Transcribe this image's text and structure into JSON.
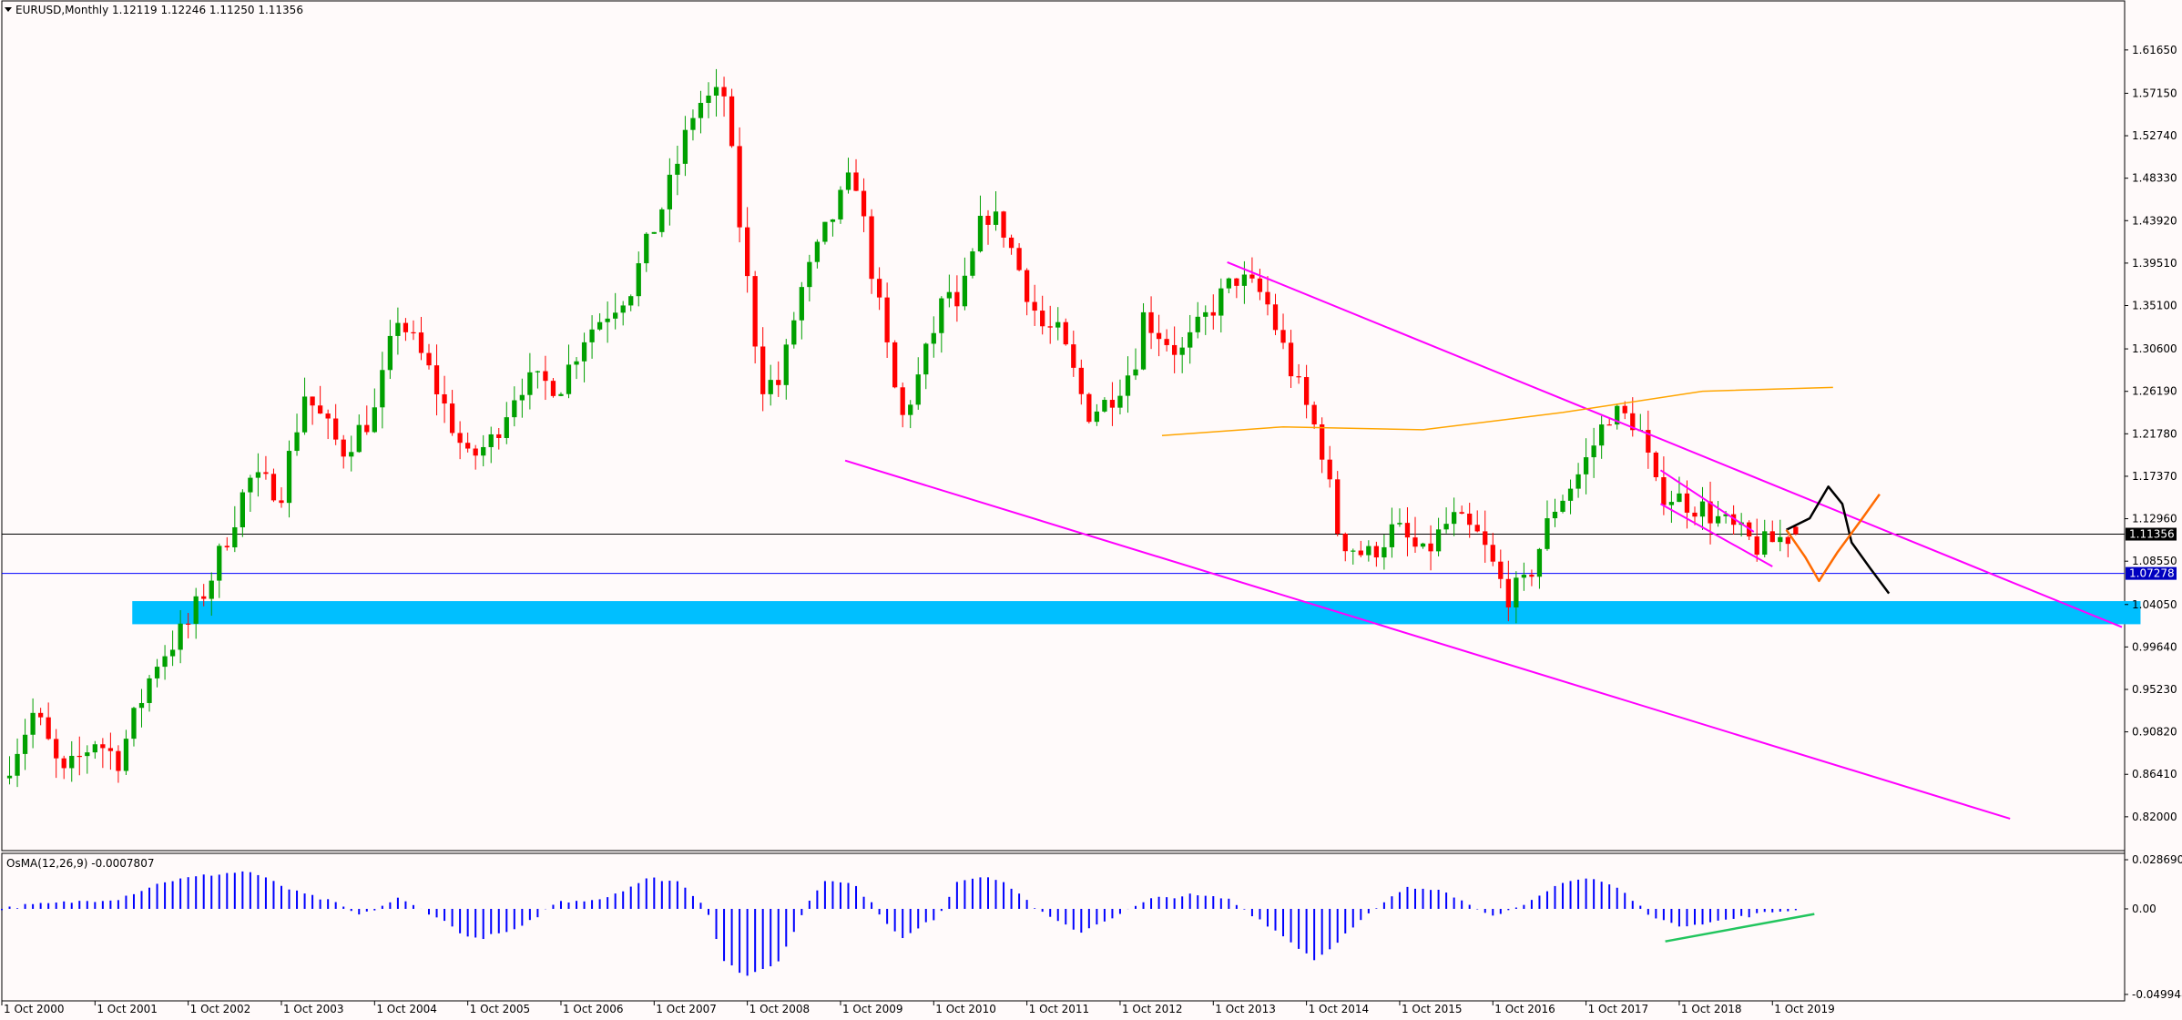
{
  "header": {
    "main_label": "EURUSD,Monthly  1.12119 1.12246 1.11250 1.11356",
    "osma_label": "OsMA(12,26,9) -0.0007807"
  },
  "colors": {
    "background": "#fffafa",
    "bull": "#00a000",
    "bear": "#ff0000",
    "channel": "#ff00ff",
    "zone": "#00bfff",
    "ma": "#ffa500",
    "bid_line": "#000000",
    "support_line": "#0000ff",
    "osma_bar": "#0000ff",
    "divergence": "#22c55e",
    "scenario_up": "#000000",
    "scenario_down": "#ff6a00"
  },
  "chart_data": [
    {
      "type": "candlestick",
      "symbol": "EURUSD",
      "timeframe": "Monthly",
      "ohlc_last": {
        "open": 1.12119,
        "high": 1.12246,
        "low": 1.1125,
        "close": 1.11356
      },
      "ylim": [
        0.8,
        1.64
      ],
      "y_ticks": [
        "1.61650",
        "1.57150",
        "1.52740",
        "1.48330",
        "1.43920",
        "1.39510",
        "1.35100",
        "1.30600",
        "1.26190",
        "1.21780",
        "1.17370",
        "1.12960",
        "1.08550",
        "1.04050",
        "0.99640",
        "0.95230",
        "0.90820",
        "0.86410",
        "0.82000"
      ],
      "x_ticks": [
        "1 Oct 2000",
        "1 Oct 2001",
        "1 Oct 2002",
        "1 Oct 2003",
        "1 Oct 2004",
        "1 Oct 2005",
        "1 Oct 2006",
        "1 Oct 2007",
        "1 Oct 2008",
        "1 Oct 2009",
        "1 Oct 2010",
        "1 Oct 2011",
        "1 Oct 2012",
        "1 Oct 2013",
        "1 Oct 2014",
        "1 Oct 2015",
        "1 Oct 2016",
        "1 Oct 2017",
        "1 Oct 2018",
        "1 Oct 2019"
      ],
      "x_range_years": [
        2000.75,
        2023.5
      ],
      "close_path": [
        [
          2000.75,
          0.86
        ],
        [
          2001.1,
          0.93
        ],
        [
          2001.4,
          0.86
        ],
        [
          2001.75,
          0.9
        ],
        [
          2002.0,
          0.88
        ],
        [
          2002.4,
          0.98
        ],
        [
          2002.75,
          1.02
        ],
        [
          2003.0,
          1.07
        ],
        [
          2003.4,
          1.17
        ],
        [
          2003.75,
          1.16
        ],
        [
          2004.0,
          1.26
        ],
        [
          2004.4,
          1.2
        ],
        [
          2004.75,
          1.24
        ],
        [
          2005.0,
          1.34
        ],
        [
          2005.3,
          1.29
        ],
        [
          2005.75,
          1.19
        ],
        [
          2006.0,
          1.21
        ],
        [
          2006.3,
          1.27
        ],
        [
          2006.75,
          1.27
        ],
        [
          2007.0,
          1.32
        ],
        [
          2007.5,
          1.37
        ],
        [
          2007.9,
          1.47
        ],
        [
          2008.2,
          1.56
        ],
        [
          2008.5,
          1.57
        ],
        [
          2008.7,
          1.41
        ],
        [
          2008.9,
          1.27
        ],
        [
          2009.1,
          1.27
        ],
        [
          2009.3,
          1.36
        ],
        [
          2009.6,
          1.43
        ],
        [
          2009.9,
          1.49
        ],
        [
          2010.1,
          1.38
        ],
        [
          2010.4,
          1.23
        ],
        [
          2010.6,
          1.28
        ],
        [
          2010.9,
          1.37
        ],
        [
          2011.0,
          1.34
        ],
        [
          2011.3,
          1.45
        ],
        [
          2011.5,
          1.43
        ],
        [
          2011.9,
          1.33
        ],
        [
          2012.1,
          1.32
        ],
        [
          2012.4,
          1.24
        ],
        [
          2012.6,
          1.25
        ],
        [
          2012.9,
          1.29
        ],
        [
          2013.0,
          1.34
        ],
        [
          2013.4,
          1.3
        ],
        [
          2013.75,
          1.35
        ],
        [
          2014.0,
          1.38
        ],
        [
          2014.3,
          1.36
        ],
        [
          2014.6,
          1.28
        ],
        [
          2014.9,
          1.21
        ],
        [
          2015.1,
          1.11
        ],
        [
          2015.4,
          1.09
        ],
        [
          2015.7,
          1.12
        ],
        [
          2016.0,
          1.09
        ],
        [
          2016.3,
          1.13
        ],
        [
          2016.6,
          1.11
        ],
        [
          2016.9,
          1.05
        ],
        [
          2017.1,
          1.06
        ],
        [
          2017.4,
          1.14
        ],
        [
          2017.7,
          1.18
        ],
        [
          2018.0,
          1.24
        ],
        [
          2018.3,
          1.23
        ],
        [
          2018.5,
          1.16
        ],
        [
          2018.75,
          1.15
        ],
        [
          2019.0,
          1.14
        ],
        [
          2019.3,
          1.12
        ],
        [
          2019.6,
          1.1
        ],
        [
          2019.85,
          1.11
        ],
        [
          2020.0,
          1.11356
        ]
      ],
      "horizontal_levels": [
        {
          "price": 1.11356,
          "label": "1.11356",
          "style": "bid"
        },
        {
          "price": 1.07278,
          "label": "1.07278",
          "style": "support"
        }
      ],
      "zone": {
        "from_x": 2002.15,
        "to_x": 2023.7,
        "price_low": 1.02,
        "price_high": 1.044
      },
      "channel_lines": [
        {
          "from": [
            2013.9,
            1.396
          ],
          "to": [
            2023.5,
            1.017
          ]
        },
        {
          "from": [
            2009.8,
            1.19
          ],
          "to": [
            2022.3,
            0.818
          ]
        },
        {
          "from": [
            2018.55,
            1.18
          ],
          "to": [
            2019.55,
            1.116
          ]
        },
        {
          "from": [
            2018.55,
            1.145
          ],
          "to": [
            2019.75,
            1.08
          ]
        }
      ],
      "moving_average": [
        [
          2013.2,
          1.216
        ],
        [
          2014.5,
          1.225
        ],
        [
          2016.0,
          1.222
        ],
        [
          2017.5,
          1.24
        ],
        [
          2019.0,
          1.262
        ],
        [
          2020.4,
          1.266
        ]
      ],
      "scenario_paths": [
        {
          "name": "",
          "color_key": "scenario_up",
          "points": [
            [
              2019.9,
              1.118
            ],
            [
              2020.15,
              1.13
            ],
            [
              2020.35,
              1.163
            ],
            [
              2020.5,
              1.145
            ],
            [
              2020.6,
              1.105
            ],
            [
              2020.8,
              1.078
            ],
            [
              2021.0,
              1.052
            ]
          ]
        },
        {
          "name": "",
          "color_key": "scenario_down",
          "points": [
            [
              2019.9,
              1.118
            ],
            [
              2020.1,
              1.09
            ],
            [
              2020.25,
              1.065
            ],
            [
              2020.45,
              1.095
            ],
            [
              2020.7,
              1.128
            ],
            [
              2020.9,
              1.155
            ]
          ]
        }
      ]
    },
    {
      "type": "bar",
      "indicator": "OsMA(12,26,9)",
      "last_value": -0.0007807,
      "y_ticks": [
        "0.0286908",
        "0.00",
        "-0.0499483"
      ],
      "ylim": [
        -0.05,
        0.0287
      ],
      "phases": [
        [
          2000.75,
          0
        ],
        [
          2001.0,
          0.002
        ],
        [
          2001.5,
          0.004
        ],
        [
          2002.0,
          0.006
        ],
        [
          2002.5,
          0.016
        ],
        [
          2003.0,
          0.02
        ],
        [
          2003.4,
          0.022
        ],
        [
          2003.9,
          0.01
        ],
        [
          2004.3,
          0.004
        ],
        [
          2004.6,
          -0.004
        ],
        [
          2005.0,
          0.006
        ],
        [
          2005.4,
          -0.004
        ],
        [
          2005.8,
          -0.018
        ],
        [
          2006.3,
          -0.012
        ],
        [
          2006.7,
          0.004
        ],
        [
          2007.2,
          0.006
        ],
        [
          2007.7,
          0.018
        ],
        [
          2008.0,
          0.016
        ],
        [
          2008.3,
          0.002
        ],
        [
          2008.5,
          -0.03
        ],
        [
          2008.75,
          -0.04
        ],
        [
          2009.1,
          -0.03
        ],
        [
          2009.4,
          0.004
        ],
        [
          2009.6,
          0.018
        ],
        [
          2009.9,
          0.014
        ],
        [
          2010.1,
          0.002
        ],
        [
          2010.4,
          -0.018
        ],
        [
          2010.8,
          -0.004
        ],
        [
          2011.0,
          0.016
        ],
        [
          2011.3,
          0.02
        ],
        [
          2011.6,
          0.012
        ],
        [
          2011.9,
          -0.002
        ],
        [
          2012.3,
          -0.014
        ],
        [
          2012.7,
          -0.004
        ],
        [
          2013.1,
          0.006
        ],
        [
          2013.5,
          0.008
        ],
        [
          2013.9,
          0.006
        ],
        [
          2014.3,
          -0.008
        ],
        [
          2014.6,
          -0.02
        ],
        [
          2014.85,
          -0.03
        ],
        [
          2015.1,
          -0.018
        ],
        [
          2015.4,
          -0.004
        ],
        [
          2015.8,
          0.012
        ],
        [
          2016.2,
          0.012
        ],
        [
          2016.5,
          0.002
        ],
        [
          2016.8,
          -0.004
        ],
        [
          2017.1,
          0.002
        ],
        [
          2017.5,
          0.016
        ],
        [
          2017.8,
          0.018
        ],
        [
          2018.1,
          0.012
        ],
        [
          2018.4,
          -0.002
        ],
        [
          2018.7,
          -0.01
        ],
        [
          2019.2,
          -0.007
        ],
        [
          2019.6,
          -0.003
        ],
        [
          2019.9,
          -0.0008
        ]
      ],
      "divergence_line": {
        "from": [
          2018.6,
          -0.019
        ],
        "to": [
          2020.2,
          -0.003
        ]
      }
    }
  ]
}
